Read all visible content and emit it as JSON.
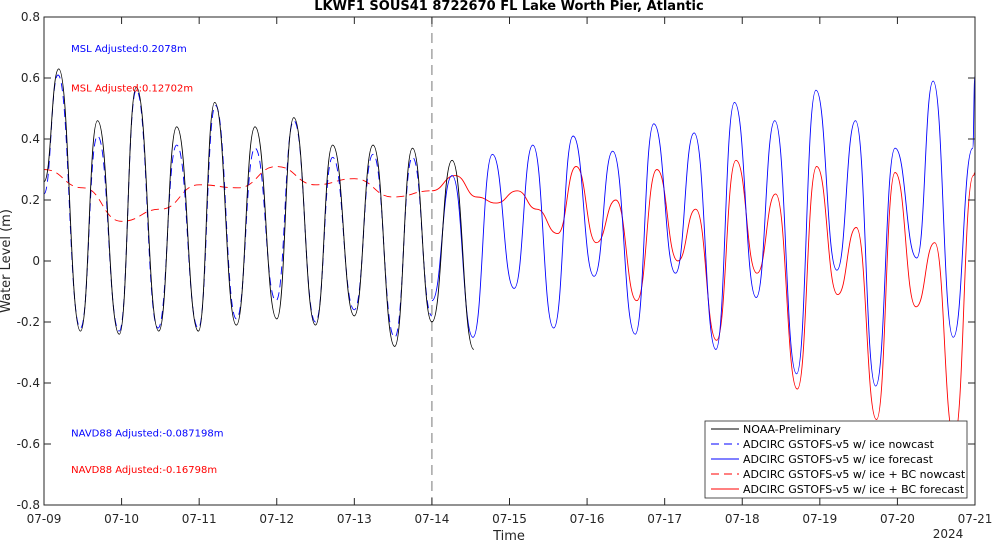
{
  "chart_data": {
    "type": "line",
    "title": "LKWF1 SOUS41 8722670 FL Lake Worth Pier, Atlantic",
    "xlabel": "Time",
    "ylabel": "Water Level (m)",
    "xlim": [
      0,
      12
    ],
    "ylim": [
      -0.8,
      0.8
    ],
    "x_ticks": [
      0,
      1,
      2,
      3,
      4,
      5,
      6,
      7,
      8,
      9,
      10,
      11,
      12
    ],
    "x_tick_labels": [
      "07-09",
      "07-10",
      "07-11",
      "07-12",
      "07-13",
      "07-14",
      "07-15",
      "07-16",
      "07-17",
      "07-18",
      "07-19",
      "07-20",
      "07-21"
    ],
    "x_year_label": "2024",
    "y_ticks": [
      -0.8,
      -0.6,
      -0.4,
      -0.2,
      0,
      0.2,
      0.4,
      0.6,
      0.8
    ],
    "y_tick_labels": [
      "-0.8",
      "-0.6",
      "-0.4",
      "-0.2",
      "0",
      "0.2",
      "0.4",
      "0.6",
      "0.8"
    ],
    "nowcast_forecast_split_x": 5,
    "grid": false,
    "legend_position": "bottom-right",
    "annotations": [
      {
        "text": "MSL Adjusted:0.2078m",
        "color": "#0000ff",
        "x": 0.35,
        "y": 0.685
      },
      {
        "text": "MSL Adjusted:0.12702m",
        "color": "#ff0000",
        "x": 0.35,
        "y": 0.555
      },
      {
        "text": "NAVD88 Adjusted:-0.087198m",
        "color": "#0000ff",
        "x": 0.35,
        "y": -0.575
      },
      {
        "text": "NAVD88 Adjusted:-0.16798m",
        "color": "#ff0000",
        "x": 0.35,
        "y": -0.695
      }
    ],
    "series": [
      {
        "name": "NOAA-Preliminary",
        "color": "#000000",
        "dash": "solid",
        "x": [
          0.0,
          0.19,
          0.47,
          0.69,
          0.97,
          1.19,
          1.48,
          1.71,
          1.99,
          2.2,
          2.48,
          2.72,
          3.0,
          3.22,
          3.5,
          3.72,
          4.0,
          4.24,
          4.52,
          4.75,
          5.0,
          5.26,
          5.54
        ],
        "values": [
          0.26,
          0.63,
          -0.23,
          0.46,
          -0.24,
          0.57,
          -0.23,
          0.44,
          -0.23,
          0.52,
          -0.21,
          0.44,
          -0.19,
          0.47,
          -0.21,
          0.38,
          -0.18,
          0.38,
          -0.28,
          0.37,
          -0.2,
          0.33,
          -0.29
        ]
      },
      {
        "name": "ADCIRC GSTOFS-v5 w/ ice nowcast",
        "color": "#0000ff",
        "dash": "8,5",
        "x": [
          0.0,
          0.18,
          0.47,
          0.69,
          0.97,
          1.19,
          1.47,
          1.71,
          1.99,
          2.21,
          2.48,
          2.72,
          2.99,
          3.22,
          3.5,
          3.72,
          4.0,
          4.24,
          4.52,
          4.75,
          5.0
        ],
        "values": [
          0.22,
          0.61,
          -0.22,
          0.41,
          -0.23,
          0.56,
          -0.22,
          0.38,
          -0.22,
          0.51,
          -0.19,
          0.37,
          -0.13,
          0.46,
          -0.2,
          0.34,
          -0.16,
          0.35,
          -0.25,
          0.34,
          -0.18
        ]
      },
      {
        "name": "ADCIRC GSTOFS-v5 w/ ice forecast",
        "color": "#0000ff",
        "dash": "solid",
        "x": [
          5.0,
          5.26,
          5.53,
          5.78,
          6.06,
          6.3,
          6.57,
          6.82,
          7.09,
          7.33,
          7.62,
          7.86,
          8.14,
          8.38,
          8.66,
          8.9,
          9.18,
          9.42,
          9.7,
          9.95,
          10.22,
          10.46,
          10.72,
          10.97,
          11.25,
          11.46,
          11.72,
          11.97,
          12.0
        ],
        "values": [
          -0.13,
          0.28,
          -0.25,
          0.35,
          -0.09,
          0.38,
          -0.22,
          0.41,
          -0.05,
          0.36,
          -0.24,
          0.45,
          -0.04,
          0.42,
          -0.29,
          0.52,
          -0.12,
          0.46,
          -0.37,
          0.56,
          -0.03,
          0.46,
          -0.41,
          0.37,
          0.01,
          0.59,
          -0.25,
          0.37,
          0.61
        ]
      },
      {
        "name": "ADCIRC GSTOFS-v5 w/ ice + BC nowcast",
        "color": "#ff0000",
        "dash": "8,5",
        "x": [
          0.0,
          0.5,
          1.0,
          1.5,
          2.0,
          2.5,
          3.0,
          3.5,
          4.0,
          4.5,
          5.0
        ],
        "values": [
          0.3,
          0.24,
          0.13,
          0.17,
          0.25,
          0.24,
          0.31,
          0.25,
          0.27,
          0.21,
          0.23
        ]
      },
      {
        "name": "ADCIRC GSTOFS-v5 w/ ice + BC forecast",
        "color": "#ff0000",
        "dash": "solid",
        "x": [
          5.0,
          5.3,
          5.58,
          5.83,
          6.1,
          6.35,
          6.62,
          6.86,
          7.12,
          7.37,
          7.64,
          7.9,
          8.17,
          8.4,
          8.67,
          8.92,
          9.19,
          9.43,
          9.71,
          9.96,
          10.23,
          10.47,
          10.73,
          10.97,
          11.24,
          11.48,
          11.73,
          11.98,
          12.0
        ],
        "values": [
          0.23,
          0.28,
          0.21,
          0.19,
          0.23,
          0.17,
          0.09,
          0.31,
          0.06,
          0.2,
          -0.13,
          0.3,
          0.0,
          0.17,
          -0.26,
          0.33,
          -0.04,
          0.22,
          -0.42,
          0.31,
          -0.11,
          0.11,
          -0.52,
          0.29,
          -0.15,
          0.06,
          -0.58,
          0.28,
          0.29
        ]
      }
    ]
  }
}
